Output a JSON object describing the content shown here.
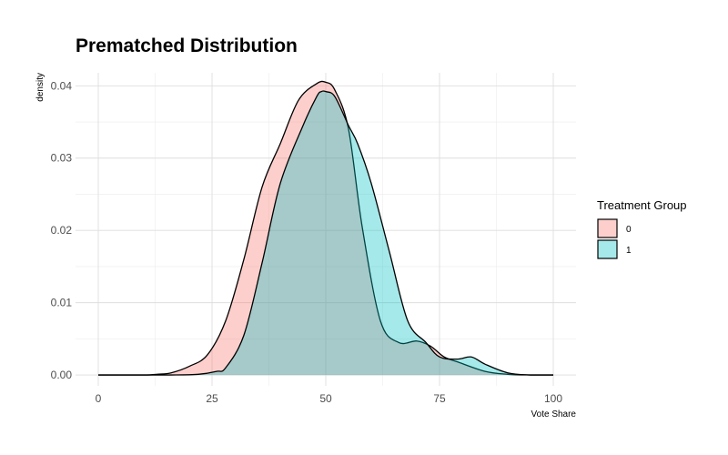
{
  "chart_data": {
    "type": "area",
    "title": "Prematched Distribution",
    "xlabel": "Vote Share",
    "ylabel": "density",
    "xlim": [
      -5,
      105
    ],
    "ylim": [
      -0.0015,
      0.0418
    ],
    "x_ticks": [
      0,
      25,
      50,
      75,
      100
    ],
    "x_tick_labels": [
      "0",
      "25",
      "50",
      "75",
      "100"
    ],
    "y_ticks": [
      0.0,
      0.01,
      0.02,
      0.03,
      0.04
    ],
    "y_tick_labels": [
      "0.00",
      "0.01",
      "0.02",
      "0.03",
      "0.04"
    ],
    "grid": true,
    "legend": {
      "title": "Treatment Group",
      "placement": "right"
    },
    "series": [
      {
        "name": "0",
        "color": "#F8766D",
        "x": [
          0,
          10,
          13,
          16,
          20,
          24,
          28,
          32,
          36,
          40,
          44,
          48,
          50,
          52,
          55,
          58,
          62,
          66,
          70,
          73,
          76,
          79,
          85,
          90,
          95,
          100
        ],
        "y": [
          0.0,
          0.0,
          0.0001,
          0.0003,
          0.0012,
          0.0028,
          0.0075,
          0.016,
          0.026,
          0.032,
          0.038,
          0.0403,
          0.0405,
          0.0394,
          0.034,
          0.0205,
          0.0075,
          0.0045,
          0.0047,
          0.004,
          0.0025,
          0.0018,
          0.0005,
          0.0001,
          0.0,
          0.0
        ]
      },
      {
        "name": "1",
        "color": "#00BFC4",
        "x": [
          0,
          10,
          16,
          22,
          26,
          28,
          32,
          36,
          40,
          45,
          48,
          49,
          50,
          52,
          55,
          57,
          60,
          64,
          68,
          72,
          75,
          79,
          82,
          85,
          90,
          95,
          100
        ],
        "y": [
          0.0,
          0.0,
          0.0,
          0.0001,
          0.0005,
          0.001,
          0.0055,
          0.0155,
          0.0265,
          0.0345,
          0.0385,
          0.0392,
          0.0392,
          0.0385,
          0.0345,
          0.032,
          0.0265,
          0.017,
          0.0075,
          0.0045,
          0.0025,
          0.0022,
          0.0025,
          0.0015,
          0.0003,
          0.0,
          0.0
        ]
      }
    ]
  }
}
